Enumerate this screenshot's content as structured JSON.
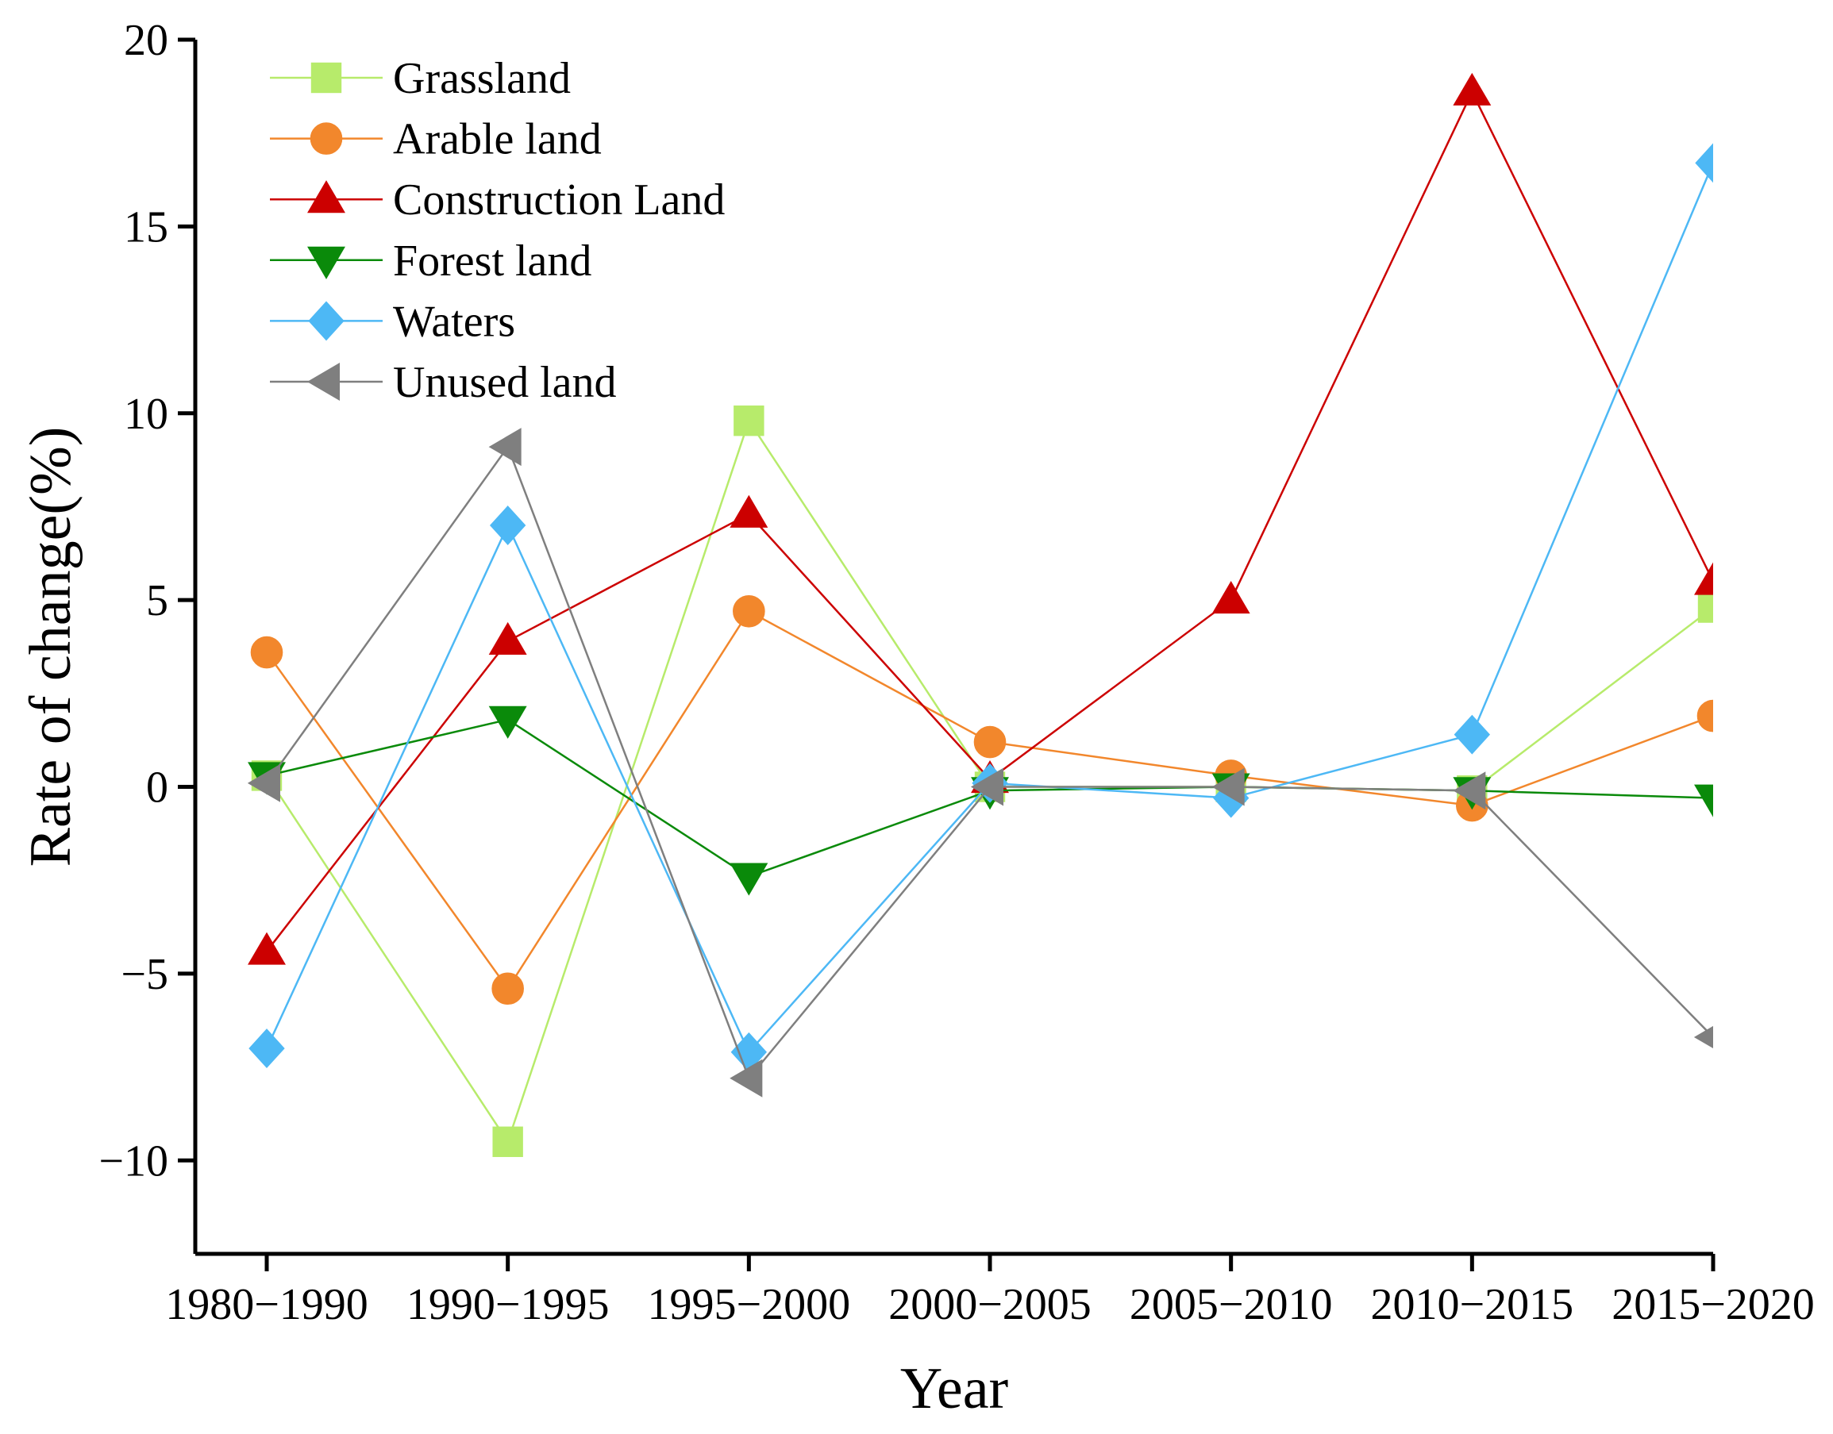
{
  "chart_data": {
    "type": "line",
    "xlabel": "Year",
    "ylabel": "Rate of change(%)",
    "categories": [
      "1980−1990",
      "1990−1995",
      "1995−2000",
      "2000−2005",
      "2005−2010",
      "2010−2015",
      "2015−2020"
    ],
    "ylim": [
      -12.5,
      20
    ],
    "yticks": [
      -10,
      -5,
      0,
      5,
      10,
      15,
      20
    ],
    "ytick_labels": [
      "−10",
      "−5",
      "0",
      "5",
      "10",
      "15",
      "20"
    ],
    "grid": false,
    "legend_position": "top-left",
    "series": [
      {
        "name": "Grassland",
        "marker": "square",
        "color": "#B7EB6B",
        "values": [
          0.3,
          -9.5,
          9.8,
          0.0,
          0.0,
          -0.1,
          4.8
        ]
      },
      {
        "name": "Arable land",
        "marker": "circle",
        "color": "#F2872C",
        "values": [
          3.6,
          -5.4,
          4.7,
          1.2,
          0.3,
          -0.5,
          1.9
        ]
      },
      {
        "name": "Construction Land",
        "marker": "triangle-up",
        "color": "#CC0000",
        "values": [
          -4.4,
          3.9,
          7.3,
          0.2,
          5.0,
          18.6,
          5.5
        ]
      },
      {
        "name": "Forest land",
        "marker": "triangle-down",
        "color": "#0A8A0A",
        "values": [
          0.3,
          1.8,
          -2.4,
          -0.1,
          0.0,
          -0.1,
          -0.3
        ]
      },
      {
        "name": "Waters",
        "marker": "diamond",
        "color": "#4DB8F5",
        "values": [
          -7.0,
          7.0,
          -7.1,
          0.1,
          -0.3,
          1.4,
          16.7
        ]
      },
      {
        "name": "Unused land",
        "marker": "triangle-left",
        "color": "#7F7F7F",
        "values": [
          0.1,
          9.1,
          -7.8,
          0.0,
          0.0,
          -0.1,
          -6.7
        ]
      }
    ]
  }
}
